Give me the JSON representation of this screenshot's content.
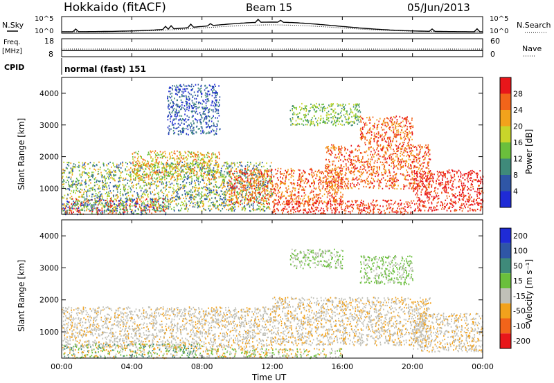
{
  "header": {
    "station": "Hokkaido (fitACF)",
    "beam": "Beam 15",
    "date": "05/Jun/2013"
  },
  "top_panels": {
    "nsky_label": "N.Sky",
    "nsearch_label": "N.Search",
    "nsky_ticks": [
      "10^5",
      "10^0"
    ],
    "nsearch_ticks": [
      "10^5",
      "10^0"
    ],
    "freq_label_1": "Freq.",
    "freq_label_2": "[MHz]",
    "freq_ticks": [
      "18",
      "8"
    ],
    "nave_ticks": [
      "60",
      "0"
    ],
    "nave_label": "Nave",
    "cpid_label": "CPID",
    "cpid_value": "normal (fast) 151"
  },
  "time_axis": {
    "label": "Time UT",
    "ticks": [
      "00:00",
      "04:00",
      "08:00",
      "12:00",
      "16:00",
      "20:00",
      "00:00"
    ]
  },
  "chart_data": [
    {
      "type": "heatmap",
      "name": "Power",
      "ylabel": "Slant Range [km]",
      "yticks": [
        "1000",
        "2000",
        "3000",
        "4000"
      ],
      "ylim": [
        180,
        4500
      ],
      "xlim_hours": [
        0,
        24
      ],
      "colorbar_label": "Power [dB]",
      "colorbar_ticks": [
        "4",
        "8",
        "12",
        "16",
        "20",
        "24",
        "28"
      ],
      "colorbar_colors": [
        "#1f2bd6",
        "#2f56a6",
        "#3f8a7a",
        "#6abf3c",
        "#c8d52a",
        "#f2a21c",
        "#f2641a",
        "#e8161a"
      ],
      "scatter_regions": [
        {
          "t0": 0.0,
          "t1": 12.0,
          "r0": 300,
          "r1": 1850,
          "c": [
            "#3f8a7a",
            "#6abf3c",
            "#c8d52a",
            "#f2a21c",
            "#2f56a6"
          ]
        },
        {
          "t0": 0.0,
          "t1": 6.0,
          "r0": 200,
          "r1": 700,
          "c": [
            "#e8161a",
            "#f2641a",
            "#6abf3c",
            "#3f8a7a",
            "#1f2bd6"
          ]
        },
        {
          "t0": 4.0,
          "t1": 9.0,
          "r0": 1300,
          "r1": 2200,
          "c": [
            "#f2a21c",
            "#c8d52a",
            "#6abf3c",
            "#f2641a"
          ]
        },
        {
          "t0": 9.5,
          "t1": 16.0,
          "r0": 500,
          "r1": 1650,
          "c": [
            "#e8161a",
            "#f2641a",
            "#f2a21c"
          ]
        },
        {
          "t0": 12.0,
          "t1": 20.0,
          "r0": 200,
          "r1": 650,
          "c": [
            "#e8161a",
            "#f2641a"
          ]
        },
        {
          "t0": 15.0,
          "t1": 21.0,
          "r0": 1000,
          "r1": 2400,
          "c": [
            "#e8161a",
            "#f2641a",
            "#f2a21c"
          ]
        },
        {
          "t0": 17.0,
          "t1": 20.0,
          "r0": 2400,
          "r1": 3300,
          "c": [
            "#f2641a",
            "#f2a21c",
            "#e8161a"
          ]
        },
        {
          "t0": 20.0,
          "t1": 24.0,
          "r0": 300,
          "r1": 1600,
          "c": [
            "#e8161a",
            "#f2641a",
            "#e8161a"
          ]
        },
        {
          "t0": 13.0,
          "t1": 17.0,
          "r0": 3000,
          "r1": 3700,
          "c": [
            "#c8d52a",
            "#6abf3c",
            "#3f8a7a"
          ]
        },
        {
          "t0": 6.0,
          "t1": 9.0,
          "r0": 2700,
          "r1": 4300,
          "c": [
            "#2f56a6",
            "#3f8a7a",
            "#1f2bd6"
          ]
        }
      ]
    },
    {
      "type": "heatmap",
      "name": "Velocity",
      "ylabel": "Slant Range [km]",
      "yticks": [
        "1000",
        "2000",
        "3000",
        "4000"
      ],
      "ylim": [
        180,
        4500
      ],
      "xlim_hours": [
        0,
        24
      ],
      "colorbar_label": "Velocity [m s⁻¹]",
      "colorbar_ticks": [
        "200",
        "100",
        "50",
        "15",
        "-15",
        "-50",
        "-100",
        "-200"
      ],
      "colorbar_colors": [
        "#1f2bd6",
        "#2f56a6",
        "#3f8a7a",
        "#6abf3c",
        "#c0c0b8",
        "#f2a21c",
        "#f2641a",
        "#e8161a"
      ],
      "scatter_regions": [
        {
          "t0": 0.0,
          "t1": 12.0,
          "r0": 500,
          "r1": 1800,
          "c": [
            "#c0c0b8",
            "#c0c0b8",
            "#f2a21c",
            "#c0c0b8"
          ]
        },
        {
          "t0": 0.0,
          "t1": 8.0,
          "r0": 200,
          "r1": 650,
          "c": [
            "#f2a21c",
            "#6abf3c",
            "#c0c0b8",
            "#3f8a7a"
          ]
        },
        {
          "t0": 8.0,
          "t1": 16.0,
          "r0": 200,
          "r1": 500,
          "c": [
            "#6abf3c",
            "#c0c0b8",
            "#f2a21c"
          ]
        },
        {
          "t0": 12.0,
          "t1": 21.0,
          "r0": 600,
          "r1": 2100,
          "c": [
            "#c0c0b8",
            "#c0c0b8",
            "#f2a21c"
          ]
        },
        {
          "t0": 20.0,
          "t1": 24.0,
          "r0": 400,
          "r1": 1600,
          "c": [
            "#c0c0b8",
            "#f2a21c",
            "#c0c0b8"
          ]
        },
        {
          "t0": 17.0,
          "t1": 20.0,
          "r0": 2500,
          "r1": 3400,
          "c": [
            "#6abf3c",
            "#c0c0b8",
            "#6abf3c"
          ]
        },
        {
          "t0": 13.0,
          "t1": 16.0,
          "r0": 3000,
          "r1": 3600,
          "c": [
            "#6abf3c",
            "#c0c0b8"
          ]
        }
      ]
    }
  ]
}
